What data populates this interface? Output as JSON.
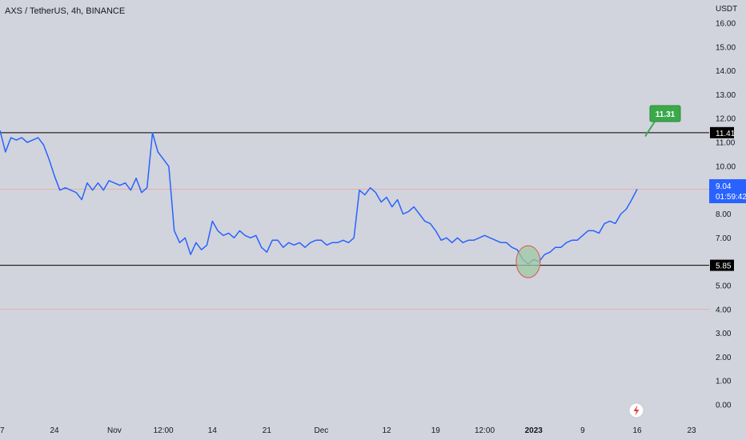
{
  "header": {
    "symbol_title": "AXS / TetherUS, 4h, BINANCE"
  },
  "price_axis": {
    "currency": "USDT"
  },
  "last_price": {
    "value": "9.04",
    "countdown": "01:59:42"
  },
  "colors": {
    "background": "#d1d4dc",
    "series_line": "#2962ff",
    "level_line": "#000000",
    "price_line": "#e8a0a0",
    "callout": "#3aa94a",
    "marker_fill": "#9fc9a4",
    "marker_stroke": "#e05050",
    "last_price_tag": "#2962ff"
  },
  "icons": {
    "axis_corner": "lightning-icon"
  },
  "chart_data": {
    "type": "line",
    "title": "AXS / TetherUS, 4h, BINANCE",
    "ylabel": "USDT",
    "ylim": [
      -0.3,
      16.3
    ],
    "y_ticks": [
      "0.00",
      "1.00",
      "2.00",
      "3.00",
      "4.00",
      "5.00",
      "7.00",
      "8.00",
      "10.00",
      "11.00",
      "12.00",
      "13.00",
      "14.00",
      "15.00",
      "16.00"
    ],
    "x_ticks": [
      "17",
      "24",
      "Nov",
      "12:00",
      "14",
      "21",
      "Dec",
      "12",
      "19",
      "12:00",
      "2023",
      "9",
      "16",
      "23"
    ],
    "x_tick_index": [
      0,
      10,
      21,
      30,
      39,
      49,
      59,
      71,
      80,
      89,
      98,
      107,
      117,
      127
    ],
    "grid": false,
    "horizontal_levels": [
      {
        "value": 11.41,
        "label": "11.41"
      },
      {
        "value": 5.85,
        "label": "5.85"
      }
    ],
    "reference_levels": [
      4.0
    ],
    "last_value": 9.04,
    "target_annotation": {
      "value": 11.31,
      "label": "11.31",
      "index": 116
    },
    "highlight": {
      "index": 97,
      "value": 6.0
    },
    "series": [
      {
        "values": [
          11.5,
          10.6,
          11.2,
          11.1,
          11.2,
          11.0,
          11.1,
          11.2,
          10.9,
          10.3,
          9.6,
          9.0,
          9.1,
          9.0,
          8.9,
          8.6,
          9.3,
          9.0,
          9.3,
          9.0,
          9.4,
          9.3,
          9.2,
          9.3,
          9.0,
          9.5,
          8.9,
          9.1,
          11.4,
          10.6,
          10.3,
          10.0,
          7.3,
          6.8,
          7.0,
          6.3,
          6.8,
          6.5,
          6.7,
          7.7,
          7.3,
          7.1,
          7.2,
          7.0,
          7.3,
          7.1,
          7.0,
          7.1,
          6.6,
          6.4,
          6.9,
          6.9,
          6.6,
          6.8,
          6.7,
          6.8,
          6.6,
          6.8,
          6.9,
          6.9,
          6.7,
          6.8,
          6.8,
          6.9,
          6.8,
          7.0,
          9.0,
          8.8,
          9.1,
          8.9,
          8.5,
          8.7,
          8.3,
          8.6,
          8.0,
          8.1,
          8.3,
          8.0,
          7.7,
          7.6,
          7.3,
          6.9,
          7.0,
          6.8,
          7.0,
          6.8,
          6.9,
          6.9,
          7.0,
          7.1,
          7.0,
          6.9,
          6.8,
          6.8,
          6.6,
          6.5,
          6.1,
          5.9,
          6.1,
          6.0,
          6.3,
          6.4,
          6.6,
          6.6,
          6.8,
          6.9,
          6.9,
          7.1,
          7.3,
          7.3,
          7.2,
          7.6,
          7.7,
          7.6,
          8.0,
          8.2,
          8.6,
          9.04
        ]
      }
    ]
  }
}
